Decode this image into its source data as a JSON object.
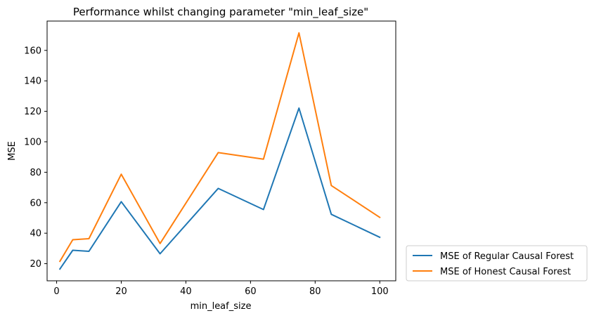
{
  "chart_data": {
    "type": "line",
    "title": "Performance whilst changing parameter \"min_leaf_size\"",
    "xlabel": "min_leaf_size",
    "ylabel": "MSE",
    "xlim": [
      -2.95,
      104.95
    ],
    "ylim": [
      8.75,
      179.25
    ],
    "xticks": [
      0,
      20,
      40,
      60,
      80,
      100
    ],
    "yticks": [
      20,
      40,
      60,
      80,
      100,
      120,
      140,
      160
    ],
    "x": [
      1,
      5,
      10,
      20,
      32,
      50,
      64,
      75,
      85,
      100
    ],
    "series": [
      {
        "name": "MSE of Regular Causal Forest",
        "color": "#1f77b4",
        "values": [
          16.5,
          28.8,
          28.1,
          60.7,
          26.5,
          69.4,
          55.5,
          122.1,
          52.4,
          37.3
        ]
      },
      {
        "name": "MSE of Honest Causal Forest",
        "color": "#ff7f0e",
        "values": [
          21.5,
          35.7,
          36.4,
          78.7,
          33.2,
          92.9,
          88.6,
          171.5,
          71.3,
          50.4
        ]
      }
    ],
    "grid": false,
    "legend_position": "lower-right-outside"
  }
}
